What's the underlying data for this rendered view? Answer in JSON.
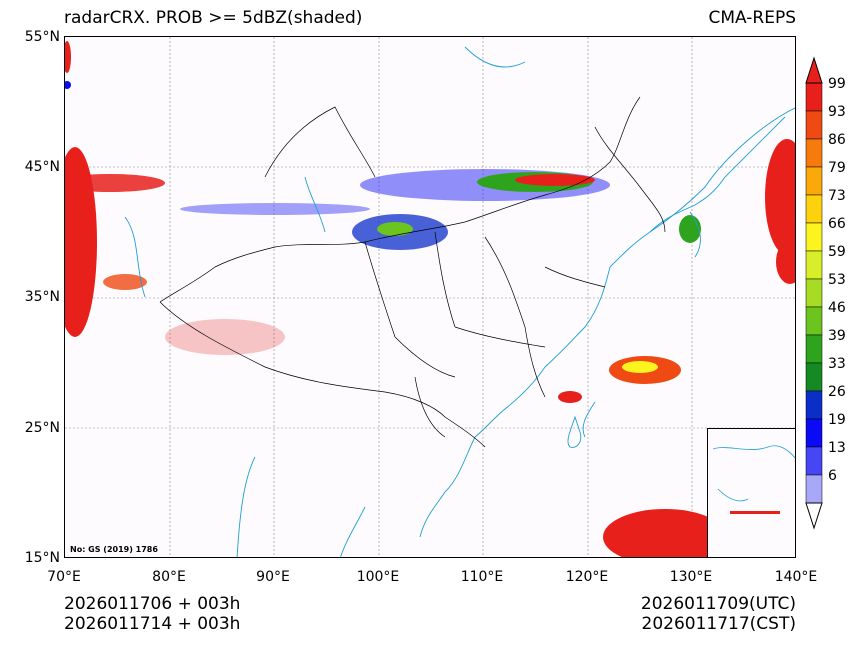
{
  "title_left": "radarCRX. PROB >= 5dBZ(shaded)",
  "title_right": "CMA-REPS",
  "lat_ticks": [
    "55°N",
    "45°N",
    "35°N",
    "25°N",
    "15°N"
  ],
  "lon_ticks": [
    "70°E",
    "80°E",
    "90°E",
    "100°E",
    "110°E",
    "120°E",
    "130°E",
    "140°E"
  ],
  "map_note": "No: GS (2019) 1786",
  "footer": {
    "init_utc": "2026011706  +  003h",
    "init_cst": "2026011714  +  003h",
    "valid_utc": "2026011709(UTC)",
    "valid_cst": "2026011717(CST)"
  },
  "colorbar": {
    "labels": [
      "99",
      "93",
      "86",
      "79",
      "73",
      "66",
      "59",
      "53",
      "46",
      "39",
      "33",
      "26",
      "19",
      "13",
      "6"
    ],
    "colors": [
      "#e8201c",
      "#f04a14",
      "#f77a0c",
      "#fba80a",
      "#fdd20c",
      "#fcf41e",
      "#d8ee2a",
      "#a8dc24",
      "#6cc41e",
      "#2ea41e",
      "#168a22",
      "#0c2ec8",
      "#0a0af4",
      "#4646f4",
      "#a8a8f8"
    ]
  },
  "colors": {
    "coast": "#1e9fd2",
    "border": "#000000",
    "grid": "#888888",
    "background": "#fdfbfe"
  }
}
